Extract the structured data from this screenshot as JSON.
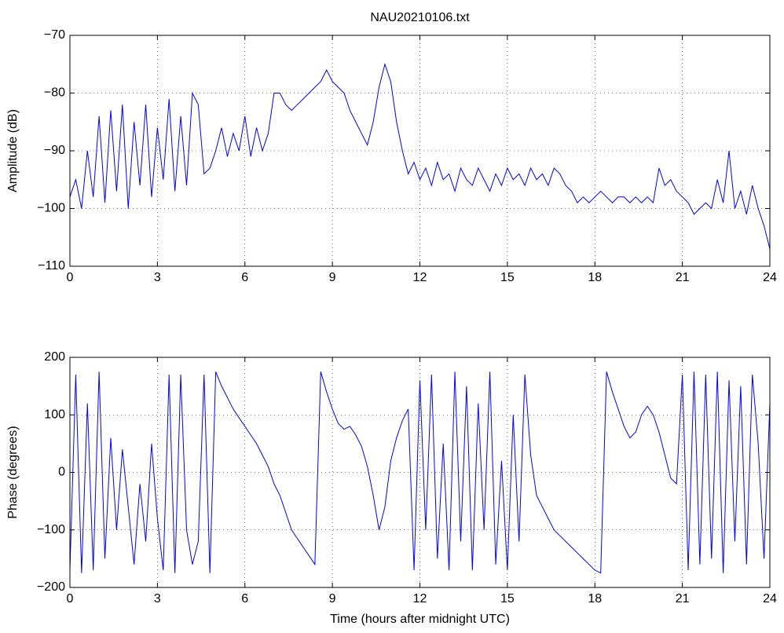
{
  "chart_data": [
    {
      "type": "line",
      "title": "NAU20210106.txt",
      "ylabel": "Amplitude (dB)",
      "color": "#0000ff",
      "grid": true,
      "xlim": [
        0,
        24
      ],
      "xticks": [
        0,
        3,
        6,
        9,
        12,
        15,
        18,
        21,
        24
      ],
      "ylim": [
        -110,
        -70
      ],
      "yticks": [
        {
          "value": -110,
          "label": "−110"
        },
        {
          "value": -100,
          "label": "−100"
        },
        {
          "value": -90,
          "label": "−90"
        },
        {
          "value": -80,
          "label": "−80"
        },
        {
          "value": -70,
          "label": "−70"
        }
      ],
      "x": [
        0,
        0.2,
        0.4,
        0.6,
        0.8,
        1,
        1.2,
        1.4,
        1.6,
        1.8,
        2,
        2.2,
        2.4,
        2.6,
        2.8,
        3,
        3.2,
        3.4,
        3.6,
        3.8,
        4,
        4.2,
        4.4,
        4.6,
        4.8,
        5,
        5.2,
        5.4,
        5.6,
        5.8,
        6,
        6.2,
        6.4,
        6.6,
        6.8,
        7,
        7.2,
        7.4,
        7.6,
        7.8,
        8,
        8.2,
        8.4,
        8.6,
        8.8,
        9,
        9.2,
        9.4,
        9.6,
        9.8,
        10,
        10.2,
        10.4,
        10.6,
        10.8,
        11,
        11.2,
        11.4,
        11.6,
        11.8,
        12,
        12.2,
        12.4,
        12.6,
        12.8,
        13,
        13.2,
        13.4,
        13.6,
        13.8,
        14,
        14.2,
        14.4,
        14.6,
        14.8,
        15,
        15.2,
        15.4,
        15.6,
        15.8,
        16,
        16.2,
        16.4,
        16.6,
        16.8,
        17,
        17.2,
        17.4,
        17.6,
        17.8,
        18,
        18.2,
        18.4,
        18.6,
        18.8,
        19,
        19.2,
        19.4,
        19.6,
        19.8,
        20,
        20.2,
        20.4,
        20.6,
        20.8,
        21,
        21.2,
        21.4,
        21.6,
        21.8,
        22,
        22.2,
        22.4,
        22.6,
        22.8,
        23,
        23.2,
        23.4,
        23.6,
        23.8,
        24
      ],
      "values": [
        -98,
        -95,
        -100,
        -90,
        -98,
        -84,
        -99,
        -83,
        -97,
        -82,
        -100,
        -85,
        -96,
        -82,
        -98,
        -86,
        -95,
        -81,
        -97,
        -84,
        -96,
        -80,
        -82,
        -94,
        -93,
        -90,
        -86,
        -91,
        -87,
        -90,
        -84,
        -91,
        -86,
        -90,
        -87,
        -80,
        -80,
        -82,
        -83,
        -82,
        -81,
        -80,
        -79,
        -78,
        -76,
        -78,
        -79,
        -80,
        -83,
        -85,
        -87,
        -89,
        -85,
        -79,
        -75,
        -78,
        -85,
        -90,
        -94,
        -92,
        -95,
        -93,
        -96,
        -92,
        -95,
        -94,
        -97,
        -93,
        -95,
        -96,
        -93,
        -95,
        -97,
        -94,
        -96,
        -93,
        -95,
        -94,
        -96,
        -93,
        -95,
        -94,
        -96,
        -93,
        -94,
        -96,
        -97,
        -99,
        -98,
        -99,
        -98,
        -97,
        -98,
        -99,
        -98,
        -98,
        -99,
        -98,
        -99,
        -98,
        -99,
        -93,
        -96,
        -95,
        -97,
        -98,
        -99,
        -101,
        -100,
        -99,
        -100,
        -95,
        -99,
        -90,
        -100,
        -97,
        -101,
        -96,
        -100,
        -103,
        -107
      ]
    },
    {
      "type": "line",
      "ylabel": "Phase (degrees)",
      "xlabel": "Time (hours after midnight UTC)",
      "color": "#0000ff",
      "grid": true,
      "xlim": [
        0,
        24
      ],
      "xticks": [
        0,
        3,
        6,
        9,
        12,
        15,
        18,
        21,
        24
      ],
      "ylim": [
        -200,
        200
      ],
      "yticks": [
        {
          "value": -200,
          "label": "−200"
        },
        {
          "value": -100,
          "label": "−100"
        },
        0,
        100,
        200
      ],
      "x": [
        0,
        0.2,
        0.4,
        0.6,
        0.8,
        1,
        1.2,
        1.4,
        1.6,
        1.8,
        2,
        2.2,
        2.4,
        2.6,
        2.8,
        3,
        3.2,
        3.4,
        3.6,
        3.8,
        4,
        4.2,
        4.4,
        4.6,
        4.8,
        5,
        5.2,
        5.4,
        5.6,
        5.8,
        6,
        6.2,
        6.4,
        6.6,
        6.8,
        7,
        7.2,
        7.4,
        7.6,
        7.8,
        8,
        8.2,
        8.4,
        8.6,
        8.8,
        9,
        9.2,
        9.4,
        9.6,
        9.8,
        10,
        10.2,
        10.4,
        10.6,
        10.8,
        11,
        11.2,
        11.4,
        11.6,
        11.8,
        12,
        12.2,
        12.4,
        12.6,
        12.8,
        13,
        13.2,
        13.4,
        13.6,
        13.8,
        14,
        14.2,
        14.4,
        14.6,
        14.8,
        15,
        15.2,
        15.4,
        15.6,
        15.8,
        16,
        16.2,
        16.4,
        16.6,
        16.8,
        17,
        17.2,
        17.4,
        17.6,
        17.8,
        18,
        18.2,
        18.4,
        18.6,
        18.8,
        19,
        19.2,
        19.4,
        19.6,
        19.8,
        20,
        20.2,
        20.4,
        20.6,
        20.8,
        21,
        21.2,
        21.4,
        21.6,
        21.8,
        22,
        22.2,
        22.4,
        22.6,
        22.8,
        23,
        23.2,
        23.4,
        23.6,
        23.8,
        24
      ],
      "values": [
        -170,
        170,
        -175,
        120,
        -170,
        175,
        -150,
        60,
        -100,
        40,
        -60,
        -160,
        -20,
        -120,
        50,
        -80,
        -170,
        170,
        -175,
        170,
        -100,
        -160,
        -120,
        170,
        -175,
        175,
        150,
        130,
        110,
        95,
        80,
        65,
        50,
        30,
        10,
        -20,
        -40,
        -70,
        -100,
        -115,
        -130,
        -145,
        -160,
        175,
        140,
        110,
        85,
        75,
        80,
        65,
        45,
        10,
        -40,
        -100,
        -60,
        20,
        60,
        90,
        110,
        -170,
        160,
        -100,
        170,
        -150,
        50,
        -170,
        175,
        -120,
        150,
        -170,
        120,
        -100,
        175,
        -160,
        20,
        -170,
        100,
        -120,
        170,
        30,
        -40,
        -60,
        -80,
        -100,
        -110,
        -120,
        -130,
        -140,
        -150,
        -160,
        -170,
        -175,
        175,
        140,
        110,
        80,
        60,
        70,
        100,
        115,
        100,
        70,
        30,
        -10,
        -20,
        170,
        -170,
        175,
        -160,
        170,
        -150,
        175,
        -175,
        160,
        -120,
        150,
        -160,
        170,
        50,
        -150,
        120
      ]
    }
  ]
}
